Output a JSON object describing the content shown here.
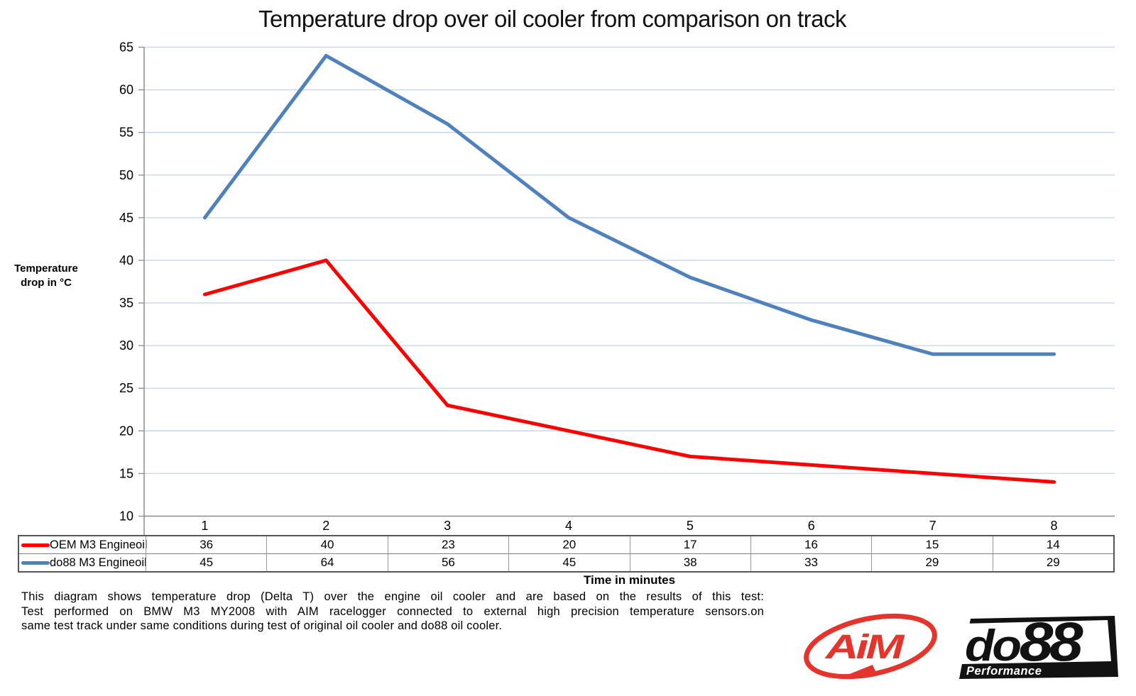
{
  "chart_data": {
    "type": "line",
    "title": "Temperature drop over oil cooler from comparison on track",
    "categories": [
      "1",
      "2",
      "3",
      "4",
      "5",
      "6",
      "7",
      "8"
    ],
    "series": [
      {
        "name": "OEM M3 Engineoil",
        "color": "#ff0000",
        "values": [
          36,
          40,
          23,
          20,
          17,
          16,
          15,
          14
        ]
      },
      {
        "name": "do88 M3 Engineoil",
        "color": "#4f81bd",
        "values": [
          45,
          64,
          56,
          45,
          38,
          33,
          29,
          29
        ]
      }
    ],
    "xlabel": "Time in minutes",
    "ylabel": "Temperature drop in °C",
    "ylabel_lines": [
      "Temperature",
      "drop in °C"
    ],
    "ylim": [
      10,
      65
    ],
    "ytick_step": 5,
    "grid": "horizontal-only",
    "legend_position": "table-rows-left",
    "markers": false
  },
  "footer": {
    "lines": [
      "This diagram shows temperature drop (Delta T) over the engine oil cooler and are based on the results of this test:",
      "Test performed on BMW M3 MY2008 with AIM racelogger connected to external high precision temperature sensors.on",
      "same test track under same conditions during test of original oil cooler and do88 oil cooler."
    ]
  },
  "logos": {
    "aim": "AiM",
    "do88_prefix": "do",
    "do88_digits": "88",
    "do88_sub": "Performance"
  },
  "style": {
    "grid_color": "#c5d5ee",
    "axis_color": "#8c8c8c",
    "tick_label_color": "#000000",
    "logo_red": "#e5342b",
    "logo_black": "#121212",
    "series_line_width": 5
  }
}
